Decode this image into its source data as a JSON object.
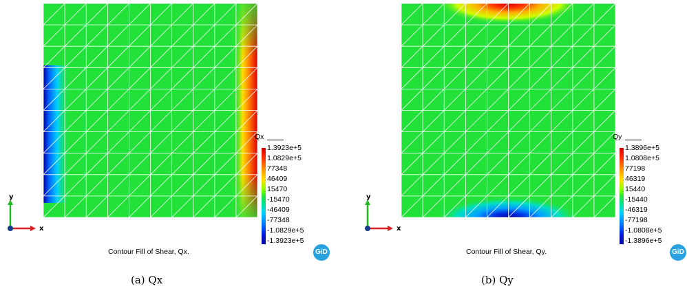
{
  "panels": [
    {
      "variable": "Qx",
      "title": "Contour Fill of Shear, Qx.",
      "subcaption": "(a) Qx",
      "legend_ticks": [
        "1.3923e+5",
        "1.0829e+5",
        "77348",
        "46409",
        "15470",
        "-15470",
        "-46409",
        "-77348",
        "-1.0829e+5",
        "-1.3923e+5"
      ],
      "axis_x_label": "x",
      "axis_y_label": "y",
      "logo": "GiD"
    },
    {
      "variable": "Qy",
      "title": "Contour Fill of Shear, Qy.",
      "subcaption": "(b) Qy",
      "legend_ticks": [
        "1.3896e+5",
        "1.0808e+5",
        "77198",
        "46319",
        "15440",
        "-15440",
        "-46319",
        "-77198",
        "-1.0808e+5",
        "-1.3896e+5"
      ],
      "axis_x_label": "x",
      "axis_y_label": "y",
      "logo": "GiD"
    }
  ],
  "colors": {
    "field_green": "#22e23a",
    "high_red": "#d50000",
    "low_blue": "#00009e",
    "mesh_line": "#ffffff",
    "logo_blue": "#2aa2e0"
  }
}
